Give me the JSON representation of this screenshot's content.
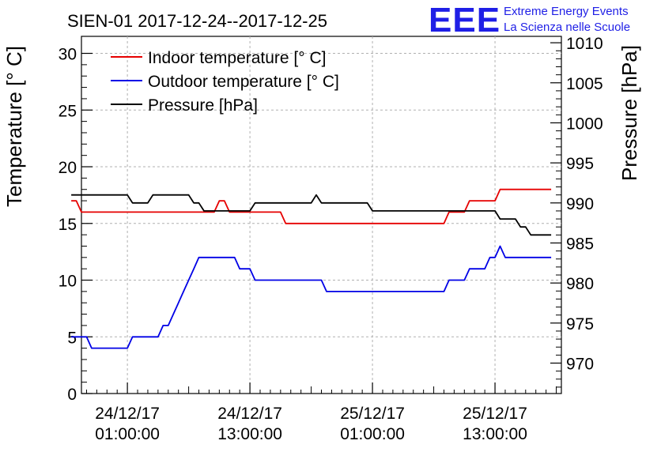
{
  "chart_data": {
    "type": "line",
    "title": "SIEN-01 2017-12-24--2017-12-25",
    "ylabel": "Temperature [° C]",
    "y2label": "Pressure [hPa]",
    "ylim": [
      0,
      31.5
    ],
    "y2lim": [
      966.2,
      1010.8
    ],
    "yticks": [
      "0",
      "5",
      "10",
      "15",
      "20",
      "25",
      "30"
    ],
    "y2ticks": [
      "970",
      "975",
      "980",
      "985",
      "990",
      "995",
      "1000",
      "1005",
      "1010"
    ],
    "xlim": [
      -4.5,
      42.5
    ],
    "xticks": [
      {
        "x": 0,
        "line1": "24/12/17",
        "line2": "01:00:00"
      },
      {
        "x": 12,
        "line1": "24/12/17",
        "line2": "13:00:00"
      },
      {
        "x": 24,
        "line1": "25/12/17",
        "line2": "01:00:00"
      },
      {
        "x": 36,
        "line1": "25/12/17",
        "line2": "13:00:00"
      }
    ],
    "legend_position": "top-left",
    "series": [
      {
        "name": "Indoor temperature [° C]",
        "axis": "left",
        "color": "#e60000",
        "x": [
          -5.5,
          -5,
          -4.5,
          -4,
          -3.5,
          -3,
          -2.5,
          -2,
          -1.5,
          -1,
          -0.5,
          0,
          0.5,
          1,
          1.5,
          2,
          2.5,
          3,
          3.5,
          4,
          4.5,
          5,
          5.5,
          6,
          6.5,
          7,
          7.5,
          8,
          8.5,
          9,
          9.5,
          10,
          10.5,
          11,
          11.5,
          12,
          12.5,
          13,
          13.5,
          14,
          14.5,
          15,
          15.5,
          16,
          16.5,
          17,
          17.5,
          18,
          18.5,
          19,
          19.5,
          20,
          20.5,
          21,
          21.5,
          22,
          22.5,
          23,
          23.5,
          24,
          24.5,
          25,
          25.5,
          26,
          26.5,
          27,
          27.5,
          28,
          28.5,
          29,
          29.5,
          30,
          30.5,
          31,
          31.5,
          32,
          32.5,
          33,
          33.5,
          34,
          34.5,
          35,
          35.5,
          36,
          36.5,
          37,
          37.5,
          38,
          38.5,
          39,
          39.5,
          40,
          40.5,
          41,
          41.5
        ],
        "values": [
          17,
          17,
          16,
          16,
          16,
          16,
          16,
          16,
          16,
          16,
          16,
          16,
          16,
          16,
          16,
          16,
          16,
          16,
          16,
          16,
          16,
          16,
          16,
          16,
          16,
          16,
          16,
          16,
          16,
          17,
          17,
          16,
          16,
          16,
          16,
          16,
          16,
          16,
          16,
          16,
          16,
          16,
          15,
          15,
          15,
          15,
          15,
          15,
          15,
          15,
          15,
          15,
          15,
          15,
          15,
          15,
          15,
          15,
          15,
          15,
          15,
          15,
          15,
          15,
          15,
          15,
          15,
          15,
          15,
          15,
          15,
          15,
          15,
          15,
          16,
          16,
          16,
          16,
          17,
          17,
          17,
          17,
          17,
          17,
          18,
          18,
          18,
          18,
          18,
          18,
          18,
          18,
          18,
          18,
          18
        ]
      },
      {
        "name": "Outdoor temperature [° C]",
        "axis": "left",
        "color": "#0000e6",
        "x": [
          -5.5,
          -5,
          -4.5,
          -4,
          -3.5,
          -3,
          -2.5,
          -2,
          -1.5,
          -1,
          -0.5,
          0,
          0.5,
          1,
          1.5,
          2,
          2.5,
          3,
          3.5,
          4,
          4.5,
          5,
          5.5,
          6,
          6.5,
          7,
          7.5,
          8,
          8.5,
          9,
          9.5,
          10,
          10.5,
          11,
          11.5,
          12,
          12.5,
          13,
          13.5,
          14,
          14.5,
          15,
          15.5,
          16,
          16.5,
          17,
          17.5,
          18,
          18.5,
          19,
          19.5,
          20,
          20.5,
          21,
          21.5,
          22,
          22.5,
          23,
          23.5,
          24,
          24.5,
          25,
          25.5,
          26,
          26.5,
          27,
          27.5,
          28,
          28.5,
          29,
          29.5,
          30,
          30.5,
          31,
          31.5,
          32,
          32.5,
          33,
          33.5,
          34,
          34.5,
          35,
          35.5,
          36,
          36.5,
          37,
          37.5,
          38,
          38.5,
          39,
          39.5,
          40,
          40.5,
          41,
          41.5
        ],
        "values": [
          5,
          5,
          5,
          5,
          4,
          4,
          4,
          4,
          4,
          4,
          4,
          4,
          5,
          5,
          5,
          5,
          5,
          5,
          6,
          6,
          7,
          8,
          9,
          10,
          11,
          12,
          12,
          12,
          12,
          12,
          12,
          12,
          12,
          11,
          11,
          11,
          10,
          10,
          10,
          10,
          10,
          10,
          10,
          10,
          10,
          10,
          10,
          10,
          10,
          10,
          9,
          9,
          9,
          9,
          9,
          9,
          9,
          9,
          9,
          9,
          9,
          9,
          9,
          9,
          9,
          9,
          9,
          9,
          9,
          9,
          9,
          9,
          9,
          9,
          10,
          10,
          10,
          10,
          11,
          11,
          11,
          11,
          12,
          12,
          13,
          12,
          12,
          12,
          12,
          12,
          12,
          12,
          12,
          12,
          12
        ]
      },
      {
        "name": "Pressure [hPa]",
        "axis": "right",
        "color": "#000000",
        "x": [
          -5.5,
          -5,
          -4.5,
          -4,
          -3.5,
          -3,
          -2.5,
          -2,
          -1.5,
          -1,
          -0.5,
          0,
          0.5,
          1,
          1.5,
          2,
          2.5,
          3,
          3.5,
          4,
          4.5,
          5,
          5.5,
          6,
          6.5,
          7,
          7.5,
          8,
          8.5,
          9,
          9.5,
          10,
          10.5,
          11,
          11.5,
          12,
          12.5,
          13,
          13.5,
          14,
          14.5,
          15,
          15.5,
          16,
          16.5,
          17,
          17.5,
          18,
          18.5,
          19,
          19.5,
          20,
          20.5,
          21,
          21.5,
          22,
          22.5,
          23,
          23.5,
          24,
          24.5,
          25,
          25.5,
          26,
          26.5,
          27,
          27.5,
          28,
          28.5,
          29,
          29.5,
          30,
          30.5,
          31,
          31.5,
          32,
          32.5,
          33,
          33.5,
          34,
          34.5,
          35,
          35.5,
          36,
          36.5,
          37,
          37.5,
          38,
          38.5,
          39,
          39.5,
          40,
          40.5,
          41,
          41.5
        ],
        "values": [
          991,
          991,
          991,
          991,
          991,
          991,
          991,
          991,
          991,
          991,
          991,
          991,
          990,
          990,
          990,
          990,
          991,
          991,
          991,
          991,
          991,
          991,
          991,
          991,
          990,
          990,
          989,
          989,
          989,
          989,
          989,
          989,
          989,
          989,
          989,
          989,
          990,
          990,
          990,
          990,
          990,
          990,
          990,
          990,
          990,
          990,
          990,
          990,
          991,
          990,
          990,
          990,
          990,
          990,
          990,
          990,
          990,
          990,
          990,
          989,
          989,
          989,
          989,
          989,
          989,
          989,
          989,
          989,
          989,
          989,
          989,
          989,
          989,
          989,
          989,
          989,
          989,
          989,
          989,
          989,
          989,
          989,
          989,
          989,
          988,
          988,
          988,
          988,
          987,
          987,
          986,
          986,
          986,
          986,
          986
        ]
      }
    ]
  },
  "logo": {
    "text": "EEE",
    "line1": "Extreme Energy Events",
    "line2": "La Scienza nelle Scuole"
  }
}
